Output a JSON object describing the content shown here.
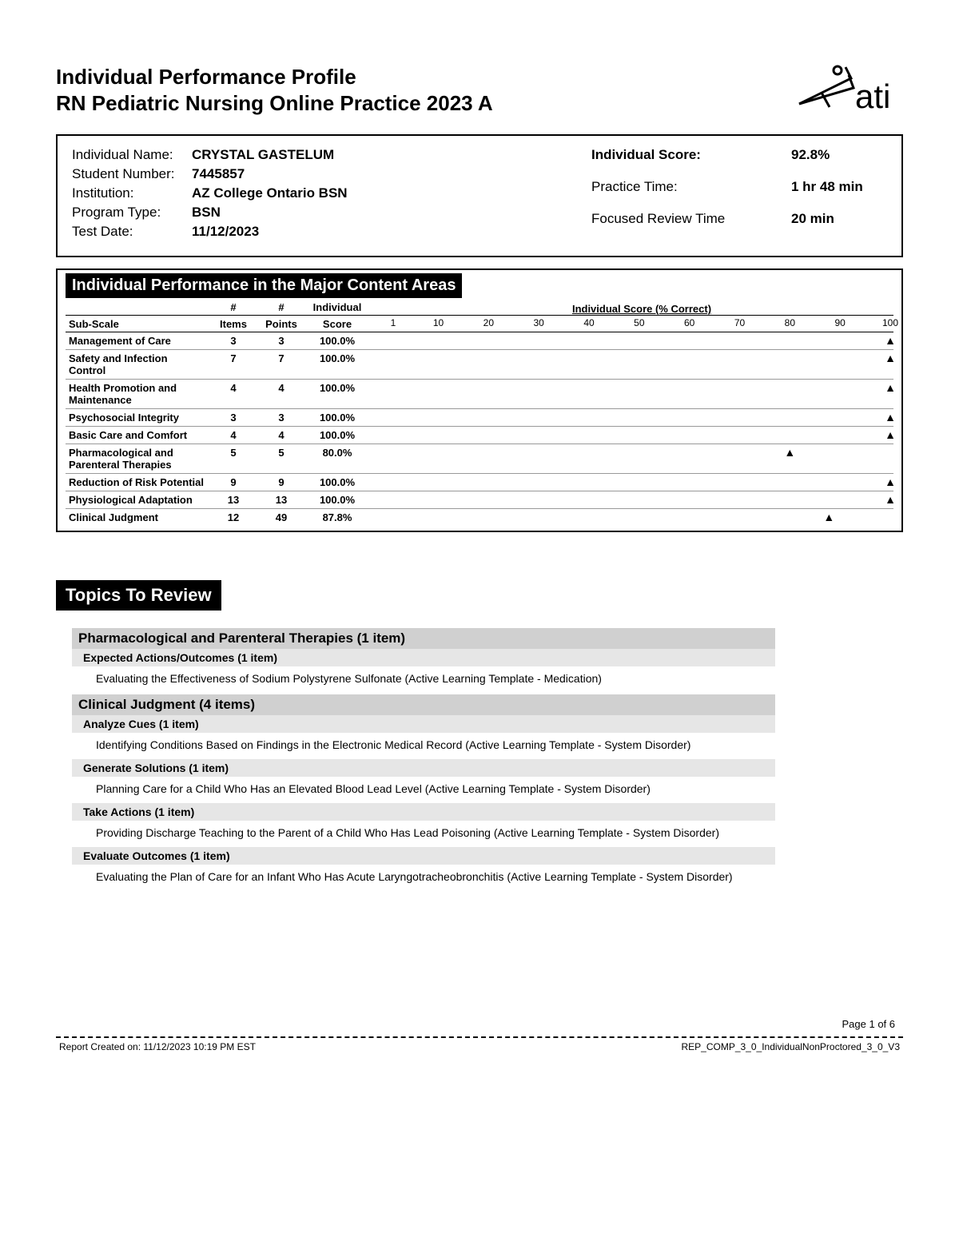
{
  "header": {
    "title_line1": "Individual Performance Profile",
    "title_line2": "RN Pediatric Nursing Online Practice 2023 A",
    "logo_text": "ati"
  },
  "info": {
    "left": [
      {
        "label": "Individual Name:",
        "value": "CRYSTAL  GASTELUM"
      },
      {
        "label": "Student Number:",
        "value": "7445857"
      },
      {
        "label": "Institution:",
        "value": "AZ College Ontario BSN"
      },
      {
        "label": "Program Type:",
        "value": "BSN"
      },
      {
        "label": "Test Date:",
        "value": "11/12/2023"
      }
    ],
    "right": [
      {
        "label": "Individual Score:",
        "value": "92.8%",
        "bold_label": true
      },
      {
        "label": "Practice Time:",
        "value": "1 hr 48 min",
        "bold_label": false
      },
      {
        "label": "Focused Review Time",
        "value": "20 min",
        "bold_label": false
      }
    ]
  },
  "performance": {
    "section_title": "Individual Performance in the Major Content Areas",
    "col_headers": {
      "sub": "Sub-Scale",
      "items_top": "#",
      "items": "Items",
      "points_top": "#",
      "points": "Points",
      "score_top": "Individual",
      "score": "Score",
      "chart": "Individual Score (% Correct)"
    },
    "axis_ticks": [
      1,
      10,
      20,
      30,
      40,
      50,
      60,
      70,
      80,
      90,
      100
    ],
    "rows": [
      {
        "name": "Management of Care",
        "items": 3,
        "points": 3,
        "score": "100.0%",
        "pct": 100
      },
      {
        "name": "Safety and Infection Control",
        "items": 7,
        "points": 7,
        "score": "100.0%",
        "pct": 100
      },
      {
        "name": "Health Promotion and Maintenance",
        "items": 4,
        "points": 4,
        "score": "100.0%",
        "pct": 100
      },
      {
        "name": "Psychosocial Integrity",
        "items": 3,
        "points": 3,
        "score": "100.0%",
        "pct": 100
      },
      {
        "name": "Basic Care and Comfort",
        "items": 4,
        "points": 4,
        "score": "100.0%",
        "pct": 100
      },
      {
        "name": "Pharmacological and Parenteral Therapies",
        "items": 5,
        "points": 5,
        "score": "80.0%",
        "pct": 80
      },
      {
        "name": "Reduction of Risk Potential",
        "items": 9,
        "points": 9,
        "score": "100.0%",
        "pct": 100
      },
      {
        "name": "Physiological Adaptation",
        "items": 13,
        "points": 13,
        "score": "100.0%",
        "pct": 100
      },
      {
        "name": "Clinical Judgment",
        "items": 12,
        "points": 49,
        "score": "87.8%",
        "pct": 87.8
      }
    ]
  },
  "topics": {
    "title": "Topics To Review",
    "categories": [
      {
        "name": "Pharmacological and Parenteral Therapies (1 item)",
        "subs": [
          {
            "name": "Expected Actions/Outcomes (1 item)",
            "items": [
              "Evaluating the Effectiveness of Sodium Polystyrene Sulfonate (Active Learning Template - Medication)"
            ]
          }
        ]
      },
      {
        "name": "Clinical Judgment (4 items)",
        "subs": [
          {
            "name": "Analyze Cues (1 item)",
            "items": [
              "Identifying Conditions Based on Findings in the Electronic Medical Record (Active Learning Template - System Disorder)"
            ]
          },
          {
            "name": "Generate Solutions (1 item)",
            "items": [
              "Planning Care for a Child Who Has an Elevated Blood Lead Level (Active Learning Template - System Disorder)"
            ]
          },
          {
            "name": "Take Actions (1 item)",
            "items": [
              "Providing Discharge Teaching to the Parent of a Child Who Has Lead Poisoning (Active Learning Template - System Disorder)"
            ]
          },
          {
            "name": "Evaluate Outcomes (1 item)",
            "items": [
              "Evaluating the Plan of Care for an Infant Who Has Acute Laryngotracheobronchitis (Active Learning Template - System Disorder)"
            ]
          }
        ]
      }
    ]
  },
  "footer": {
    "page": "Page 1 of 6",
    "created": "Report Created on: 11/12/2023 10:19 PM EST",
    "ref": "REP_COMP_3_0_IndividualNonProctored_3_0_V3"
  },
  "colors": {
    "black": "#000000",
    "gray_cat": "#d0d0d0",
    "gray_sub": "#e6e6e6",
    "row_border": "#999999"
  }
}
